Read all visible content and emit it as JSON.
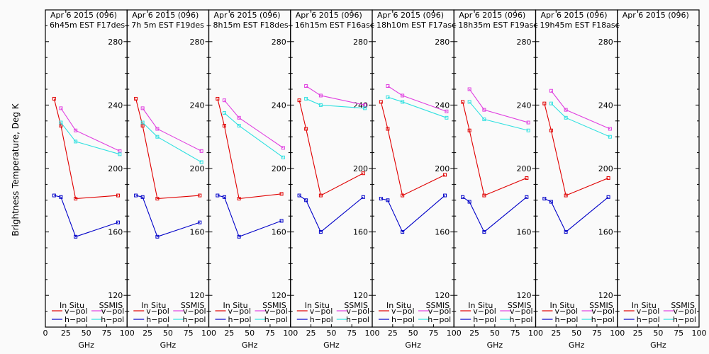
{
  "chart_data": {
    "type": "line",
    "ylabel": "Brightness Temperature, Deg K",
    "xlabel": "GHz",
    "xlim": [
      0,
      100
    ],
    "ylim": [
      100,
      300
    ],
    "x_ticks": [
      0,
      25,
      50,
      75,
      100
    ],
    "y_ticks": [
      120,
      160,
      200,
      240,
      280
    ],
    "y_minor_step": 10,
    "grid": false,
    "colors": {
      "insitu_v": "#e00000",
      "insitu_h": "#0000c8",
      "ssmis_v": "#e040e0",
      "ssmis_h": "#30e0e0",
      "axis": "#000000"
    },
    "legend": {
      "placement": "bottom",
      "insitu_title": "In Situ",
      "ssmis_title": "SSMIS",
      "v_label": "v−pol",
      "h_label": "h−pol"
    },
    "panels": [
      {
        "title1": "Apr 6 2015 (096)",
        "title2": "6h45m  EST F17des",
        "series": [
          {
            "name": "In Situ v-pol",
            "key": "insitu_v",
            "x": [
              10.7,
              19,
              37,
              89
            ],
            "values": [
              244,
              227,
              181,
              183
            ]
          },
          {
            "name": "In Situ h-pol",
            "key": "insitu_h",
            "x": [
              10.7,
              19,
              37,
              89
            ],
            "values": [
              183,
              182,
              157,
              166
            ]
          },
          {
            "name": "SSMIS v-pol",
            "key": "ssmis_v",
            "x": [
              19,
              37,
              91
            ],
            "values": [
              238,
              224,
              211
            ]
          },
          {
            "name": "SSMIS h-pol",
            "key": "ssmis_h",
            "x": [
              19,
              37,
              91
            ],
            "values": [
              229,
              217,
              209
            ]
          }
        ]
      },
      {
        "title1": "Apr 6 2015 (096)",
        "title2": "7h 5m  EST F19des",
        "series": [
          {
            "name": "In Situ v-pol",
            "key": "insitu_v",
            "x": [
              10.7,
              19,
              37,
              89
            ],
            "values": [
              244,
              227,
              181,
              183
            ]
          },
          {
            "name": "In Situ h-pol",
            "key": "insitu_h",
            "x": [
              10.7,
              19,
              37,
              89
            ],
            "values": [
              183,
              182,
              157,
              166
            ]
          },
          {
            "name": "SSMIS v-pol",
            "key": "ssmis_v",
            "x": [
              19,
              37,
              91
            ],
            "values": [
              238,
              225,
              211
            ]
          },
          {
            "name": "SSMIS h-pol",
            "key": "ssmis_h",
            "x": [
              19,
              37,
              91
            ],
            "values": [
              229,
              220,
              204
            ]
          }
        ]
      },
      {
        "title1": "Apr 6 2015 (096)",
        "title2": "8h15m  EST F18des",
        "series": [
          {
            "name": "In Situ v-pol",
            "key": "insitu_v",
            "x": [
              10.7,
              19,
              37,
              89
            ],
            "values": [
              244,
              227,
              181,
              184
            ]
          },
          {
            "name": "In Situ h-pol",
            "key": "insitu_h",
            "x": [
              10.7,
              19,
              37,
              89
            ],
            "values": [
              183,
              182,
              157,
              167
            ]
          },
          {
            "name": "SSMIS v-pol",
            "key": "ssmis_v",
            "x": [
              19,
              37,
              91
            ],
            "values": [
              243,
              232,
              213
            ]
          },
          {
            "name": "SSMIS h-pol",
            "key": "ssmis_h",
            "x": [
              19,
              37,
              91
            ],
            "values": [
              235,
              227,
              207
            ]
          }
        ]
      },
      {
        "title1": "Apr 6 2015 (096)",
        "title2": "16h15m  EST F16asc",
        "series": [
          {
            "name": "In Situ v-pol",
            "key": "insitu_v",
            "x": [
              10.7,
              19,
              37,
              89
            ],
            "values": [
              243,
              225,
              183,
              197
            ]
          },
          {
            "name": "In Situ h-pol",
            "key": "insitu_h",
            "x": [
              10.7,
              19,
              37,
              89
            ],
            "values": [
              183,
              180,
              160,
              182
            ]
          },
          {
            "name": "SSMIS v-pol",
            "key": "ssmis_v",
            "x": [
              19,
              37,
              91
            ],
            "values": [
              252,
              246,
              240
            ]
          },
          {
            "name": "SSMIS h-pol",
            "key": "ssmis_h",
            "x": [
              19,
              37,
              91
            ],
            "values": [
              244,
              240,
              238
            ]
          }
        ]
      },
      {
        "title1": "Apr 6 2015 (096)",
        "title2": "18h10m  EST F17asc",
        "series": [
          {
            "name": "In Situ v-pol",
            "key": "insitu_v",
            "x": [
              10.7,
              19,
              37,
              89
            ],
            "values": [
              242,
              225,
              183,
              196
            ]
          },
          {
            "name": "In Situ h-pol",
            "key": "insitu_h",
            "x": [
              10.7,
              19,
              37,
              89
            ],
            "values": [
              181,
              180,
              160,
              183
            ]
          },
          {
            "name": "SSMIS v-pol",
            "key": "ssmis_v",
            "x": [
              19,
              37,
              91
            ],
            "values": [
              252,
              246,
              236
            ]
          },
          {
            "name": "SSMIS h-pol",
            "key": "ssmis_h",
            "x": [
              19,
              37,
              91
            ],
            "values": [
              245,
              242,
              232
            ]
          }
        ]
      },
      {
        "title1": "Apr 6 2015 (096)",
        "title2": "18h35m  EST F19asc",
        "series": [
          {
            "name": "In Situ v-pol",
            "key": "insitu_v",
            "x": [
              10.7,
              19,
              37,
              89
            ],
            "values": [
              242,
              224,
              183,
              194
            ]
          },
          {
            "name": "In Situ h-pol",
            "key": "insitu_h",
            "x": [
              10.7,
              19,
              37,
              89
            ],
            "values": [
              182,
              179,
              160,
              182
            ]
          },
          {
            "name": "SSMIS v-pol",
            "key": "ssmis_v",
            "x": [
              19,
              37,
              91
            ],
            "values": [
              250,
              237,
              229
            ]
          },
          {
            "name": "SSMIS h-pol",
            "key": "ssmis_h",
            "x": [
              19,
              37,
              91
            ],
            "values": [
              242,
              231,
              224
            ]
          }
        ]
      },
      {
        "title1": "Apr 6 2015 (096)",
        "title2": "19h45m  EST F18asc",
        "series": [
          {
            "name": "In Situ v-pol",
            "key": "insitu_v",
            "x": [
              10.7,
              19,
              37,
              89
            ],
            "values": [
              241,
              224,
              183,
              194
            ]
          },
          {
            "name": "In Situ h-pol",
            "key": "insitu_h",
            "x": [
              10.7,
              19,
              37,
              89
            ],
            "values": [
              181,
              179,
              160,
              182
            ]
          },
          {
            "name": "SSMIS v-pol",
            "key": "ssmis_v",
            "x": [
              19,
              37,
              91
            ],
            "values": [
              249,
              237,
              225
            ]
          },
          {
            "name": "SSMIS h-pol",
            "key": "ssmis_h",
            "x": [
              19,
              37,
              91
            ],
            "values": [
              241,
              232,
              220
            ]
          }
        ]
      },
      {
        "title1": "Apr 6 2015 (096)",
        "title2": "",
        "series": []
      }
    ]
  }
}
